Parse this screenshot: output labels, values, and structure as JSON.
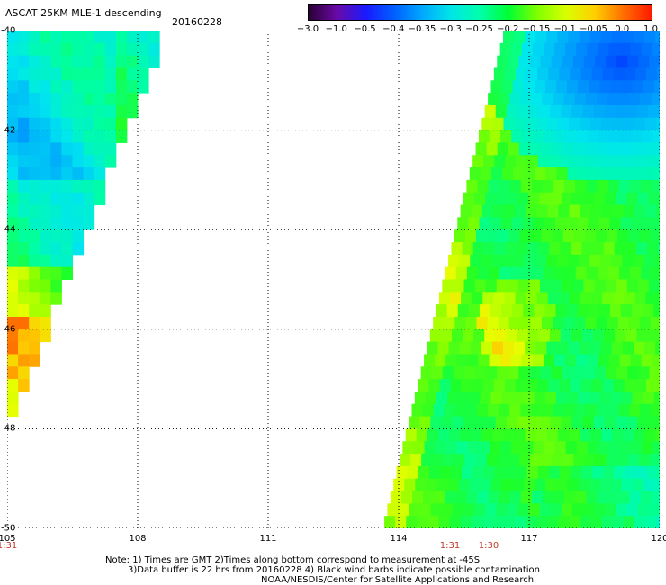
{
  "header": {
    "title": "ASCAT 25KM MLE-1 descending",
    "date": "20160228"
  },
  "colorbar": {
    "ticks": [
      "-3.0",
      "-1.0",
      "-0.5",
      "-0.4",
      "-0.35",
      "-0.3",
      "-0.25",
      "-0.2",
      "-0.15",
      "-0.1",
      "-0.05",
      "0.0",
      "1.0"
    ],
    "colors": [
      "#2a0033",
      "#6a0aa8",
      "#1a1aff",
      "#0060ff",
      "#00aaff",
      "#00e6e6",
      "#00ffaa",
      "#00ff33",
      "#7fff00",
      "#d8ff00",
      "#ffd000",
      "#ff7000",
      "#ff1a00"
    ]
  },
  "map": {
    "lat_labels": [
      "-40",
      "-42",
      "-44",
      "-46",
      "-48",
      "-50"
    ],
    "lon_labels": [
      "105",
      "108",
      "111",
      "114",
      "117",
      "120"
    ],
    "lat_range": [
      -50,
      -40
    ],
    "lon_range": [
      105,
      120
    ],
    "times": [
      "1:31",
      "1:31",
      "1:30"
    ],
    "swaths": [
      {
        "lon_west": 105.0,
        "lat_top": -40.0,
        "lon_east_top": 108.5,
        "lat_bottom": -47.7,
        "lon_east_bottom": 105.0
      },
      {
        "lon_west_top": 116.4,
        "lat_top": -40.0,
        "lon_west_bottom": 113.6,
        "lat_bottom": -50.0,
        "lon_east": 120.0
      }
    ]
  },
  "notes": {
    "line1": "Note: 1) Times are GMT 2)Times along bottom correspond to measurement at -45S",
    "line2": "3)Data buffer is 22 hrs from 20160228 4) Black wind barbs indicate possible contamination",
    "line3": "NOAA/NESDIS/Center for Satellite Applications and Research"
  }
}
